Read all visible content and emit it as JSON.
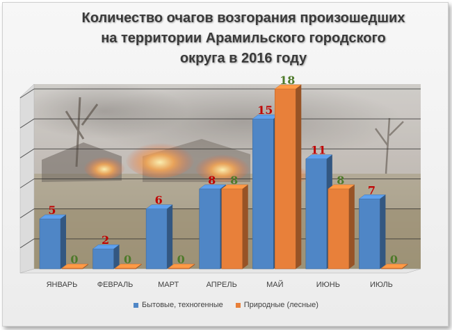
{
  "chart_data": {
    "type": "bar",
    "title_lines": [
      "Количество очагов возгорания произошедших",
      "на территории  Арамильского городского",
      "округа в 2016 году"
    ],
    "categories": [
      "ЯНВАРЬ",
      "ФЕВРАЛЬ",
      "МАРТ",
      "АПРЕЛЬ",
      "МАЙ",
      "ИЮНЬ",
      "ИЮЛЬ"
    ],
    "series": [
      {
        "name": "Бытовые, техногенные",
        "values": [
          5,
          2,
          6,
          8,
          15,
          11,
          7
        ],
        "color": "#4f86c6",
        "label_color": "#c00000"
      },
      {
        "name": "Природные (лесные)",
        "values": [
          0,
          0,
          0,
          8,
          18,
          8,
          0
        ],
        "color": "#e8803a",
        "label_color": "#4e7a2a"
      }
    ],
    "ylim": [
      0,
      18
    ],
    "grid": true,
    "legend_position": "bottom",
    "three_d": true,
    "background_image": "fire"
  }
}
